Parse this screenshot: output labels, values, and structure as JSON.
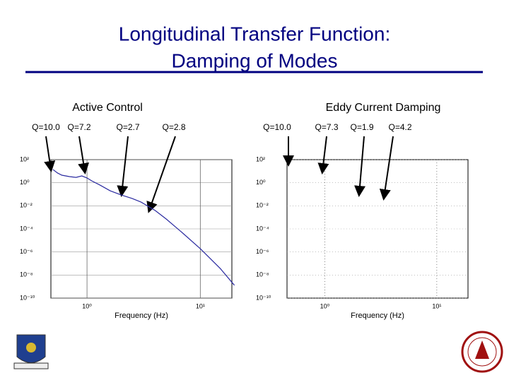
{
  "title_lines": [
    "Longitudinal Transfer Function:",
    "Damping of Modes"
  ],
  "chart_data": [
    {
      "type": "line",
      "subtitle": "Active Control",
      "xlabel": "Frequency (Hz)",
      "log_x": true,
      "log_y": true,
      "grid": true,
      "xlim": [
        0.48,
        19
      ],
      "ylim": [
        1e-10,
        100
      ],
      "xticks": [
        {
          "value": 1,
          "label": "10⁰"
        },
        {
          "value": 10,
          "label": "10¹"
        }
      ],
      "yticks": [
        {
          "value": 100,
          "label": "10²"
        },
        {
          "value": 1,
          "label": "10⁰"
        },
        {
          "value": 0.01,
          "label": "10⁻²"
        },
        {
          "value": 0.0001,
          "label": "10⁻⁴"
        },
        {
          "value": 1e-06,
          "label": "10⁻⁶"
        },
        {
          "value": 1e-08,
          "label": "10⁻⁸"
        },
        {
          "value": 1e-10,
          "label": "10⁻¹⁰"
        }
      ],
      "annotations": [
        "Q=10.0",
        "Q=7.2",
        "Q=2.7",
        "Q=2.8"
      ],
      "series": [
        {
          "color": "#2a2aa0",
          "x": [
            0.5,
            0.55,
            0.6,
            0.7,
            0.8,
            0.9,
            1.0,
            1.1,
            1.3,
            1.6,
            2,
            2.5,
            3,
            4,
            5,
            7,
            10,
            15,
            20
          ],
          "values": [
            14,
            6.9,
            4.5,
            3.4,
            2.9,
            3.9,
            2.6,
            1.45,
            0.63,
            0.2,
            0.087,
            0.043,
            0.021,
            0.0039,
            0.00072,
            4.3e-05,
            1.9e-06,
            3.7e-08,
            1.3e-09
          ]
        }
      ]
    },
    {
      "type": "line",
      "subtitle": "Eddy Current Damping",
      "xlabel": "Frequency (Hz)",
      "log_x": true,
      "log_y": true,
      "grid": true,
      "xlim": [
        0.46,
        19
      ],
      "ylim": [
        1e-10,
        100
      ],
      "xticks": [
        {
          "value": 1,
          "label": "10⁰"
        },
        {
          "value": 10,
          "label": "10¹"
        }
      ],
      "yticks": [
        {
          "value": 100,
          "label": "10²"
        },
        {
          "value": 1,
          "label": "10⁰"
        },
        {
          "value": 0.01,
          "label": "10⁻²"
        },
        {
          "value": 0.0001,
          "label": "10⁻⁴"
        },
        {
          "value": 1e-06,
          "label": "10⁻⁶"
        },
        {
          "value": 1e-08,
          "label": "10⁻⁸"
        },
        {
          "value": 1e-10,
          "label": "10⁻¹⁰"
        }
      ],
      "annotations": [
        "Q=10.0",
        "Q=7.3",
        "Q=1.9",
        "Q=4.2"
      ],
      "series": []
    }
  ]
}
